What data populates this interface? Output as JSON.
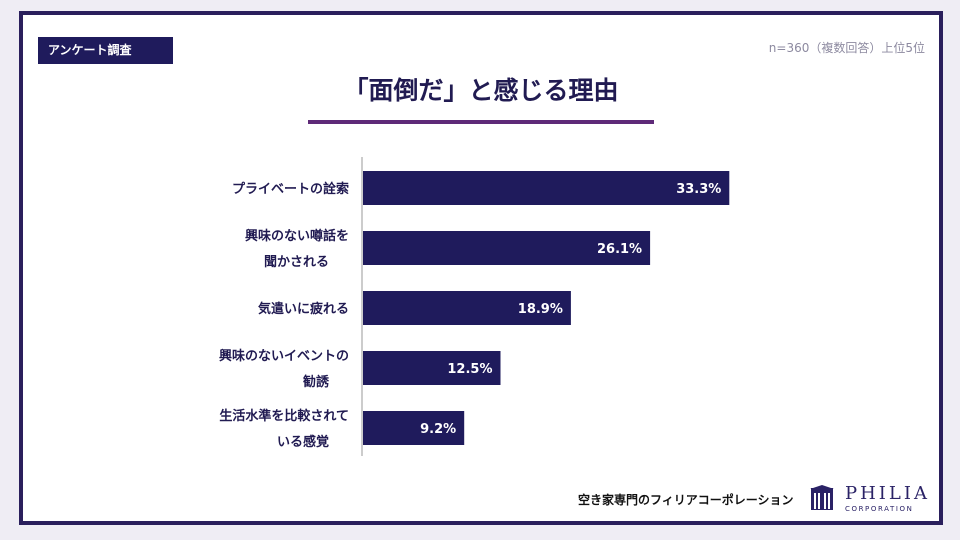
{
  "header": {
    "tag": "アンケート調査",
    "meta": "n=360（複数回答）上位5位",
    "title": "「面倒だ」と感じる理由"
  },
  "chart_data": {
    "type": "bar",
    "orientation": "horizontal",
    "categories": [
      [
        "プライベートの詮索"
      ],
      [
        "興味のない噂話を",
        "聞かされる"
      ],
      [
        "気遣いに疲れる"
      ],
      [
        "興味のないイベントの",
        "勧誘"
      ],
      [
        "生活水準を比較されて",
        "いる感覚"
      ]
    ],
    "values": [
      33.3,
      26.1,
      18.9,
      12.5,
      9.2
    ],
    "value_labels": [
      "33.3%",
      "26.1%",
      "18.9%",
      "12.5%",
      "9.2%"
    ],
    "unit": "%",
    "xlim": [
      0,
      45
    ],
    "bar_color": "#1f1b5c",
    "label_color": "#211b52",
    "grid": false,
    "legend": "none"
  },
  "footer": {
    "company": "空き家専門のフィリアコーポレーション",
    "logo_text": "PHILIA",
    "logo_sub": "CORPORATION",
    "logo_icon": "building-icon"
  },
  "colors": {
    "frame": "#2a1f5c",
    "accent_rule": "#5e2a78",
    "bar": "#1f1b5c"
  }
}
